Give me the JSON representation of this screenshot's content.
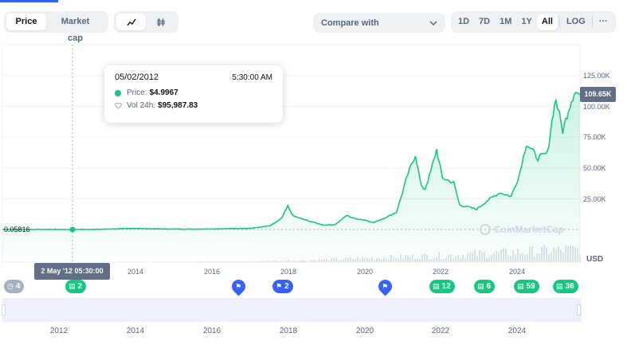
{
  "toolbar": {
    "chart_types": [
      {
        "label": "Price",
        "active": true
      },
      {
        "label": "Market cap",
        "active": false
      }
    ],
    "styles": [
      {
        "icon": "line-chart-icon",
        "active": true
      },
      {
        "icon": "candlestick-icon",
        "active": false
      }
    ],
    "compare_label": "Compare with",
    "ranges": [
      {
        "label": "1D",
        "active": false
      },
      {
        "label": "7D",
        "active": false
      },
      {
        "label": "1M",
        "active": false
      },
      {
        "label": "1Y",
        "active": false
      },
      {
        "label": "All",
        "active": true
      }
    ],
    "log_label": "LOG",
    "more_label": "···"
  },
  "tooltip": {
    "date": "05/02/2012",
    "time": "5:30:00 AM",
    "price_label": "Price:",
    "price_value": "$4.9967",
    "vol_label": "Vol 24h:",
    "vol_value": "$95,987.83"
  },
  "current_price_tag": "109.65K",
  "baseline_tag": "0.05816",
  "hover_date_tag": "2 May '12 05:30:00",
  "currency": "USD",
  "watermark": "CoinMarketCap",
  "events": [
    {
      "type": "grey",
      "icon": "clock-icon",
      "count": "4"
    },
    {
      "type": "green",
      "icon": "document-icon",
      "count": "2"
    },
    {
      "type": "pin",
      "icon": "flag-icon",
      "count": ""
    },
    {
      "type": "blue",
      "icon": "flag-icon",
      "count": "2"
    },
    {
      "type": "pin",
      "icon": "flag-icon",
      "count": ""
    },
    {
      "type": "green",
      "icon": "document-icon",
      "count": "12"
    },
    {
      "type": "green",
      "icon": "document-icon",
      "count": "6"
    },
    {
      "type": "green",
      "icon": "document-icon",
      "count": "59"
    },
    {
      "type": "green",
      "icon": "document-icon",
      "count": "36"
    }
  ],
  "colors": {
    "line": "#16c784",
    "accent": "#3861fb",
    "muted": "#58667e"
  },
  "chart_data": {
    "type": "area",
    "y_axis": {
      "ticks": [
        "125.00K",
        "100.00K",
        "75.00K",
        "50.00K",
        "25.00K"
      ],
      "tick_values": [
        125000,
        100000,
        75000,
        50000,
        25000
      ],
      "range": [
        0,
        125000
      ]
    },
    "x_axis": {
      "ticks": [
        "2014",
        "2016",
        "2018",
        "2020",
        "2022",
        "2024"
      ],
      "range": [
        2010.5,
        2025.6
      ]
    },
    "navigator_ticks": [
      "2012",
      "2014",
      "2016",
      "2018",
      "2020",
      "2022",
      "2024"
    ],
    "series": [
      {
        "points": [
          [
            2010.5,
            0
          ],
          [
            2013.0,
            100
          ],
          [
            2013.9,
            900
          ],
          [
            2014.5,
            500
          ],
          [
            2015.5,
            300
          ],
          [
            2016.5,
            700
          ],
          [
            2017.0,
            1000
          ],
          [
            2017.5,
            3000
          ],
          [
            2017.8,
            9000
          ],
          [
            2017.96,
            19000
          ],
          [
            2018.1,
            11000
          ],
          [
            2018.4,
            8000
          ],
          [
            2018.9,
            3500
          ],
          [
            2019.2,
            4000
          ],
          [
            2019.5,
            11500
          ],
          [
            2019.7,
            9000
          ],
          [
            2020.0,
            7500
          ],
          [
            2020.2,
            5500
          ],
          [
            2020.5,
            9500
          ],
          [
            2020.8,
            14000
          ],
          [
            2020.95,
            29000
          ],
          [
            2021.1,
            45000
          ],
          [
            2021.3,
            61000
          ],
          [
            2021.45,
            35000
          ],
          [
            2021.55,
            33000
          ],
          [
            2021.7,
            47000
          ],
          [
            2021.85,
            65000
          ],
          [
            2022.0,
            42000
          ],
          [
            2022.3,
            38000
          ],
          [
            2022.45,
            20000
          ],
          [
            2022.9,
            16500
          ],
          [
            2023.2,
            24000
          ],
          [
            2023.5,
            30000
          ],
          [
            2023.8,
            27000
          ],
          [
            2024.0,
            43000
          ],
          [
            2024.2,
            70000
          ],
          [
            2024.5,
            58000
          ],
          [
            2024.75,
            62000
          ],
          [
            2024.9,
            96000
          ],
          [
            2024.97,
            106000
          ],
          [
            2025.15,
            80000
          ],
          [
            2025.3,
            98000
          ],
          [
            2025.45,
            112000
          ],
          [
            2025.6,
            109650
          ]
        ]
      }
    ]
  }
}
